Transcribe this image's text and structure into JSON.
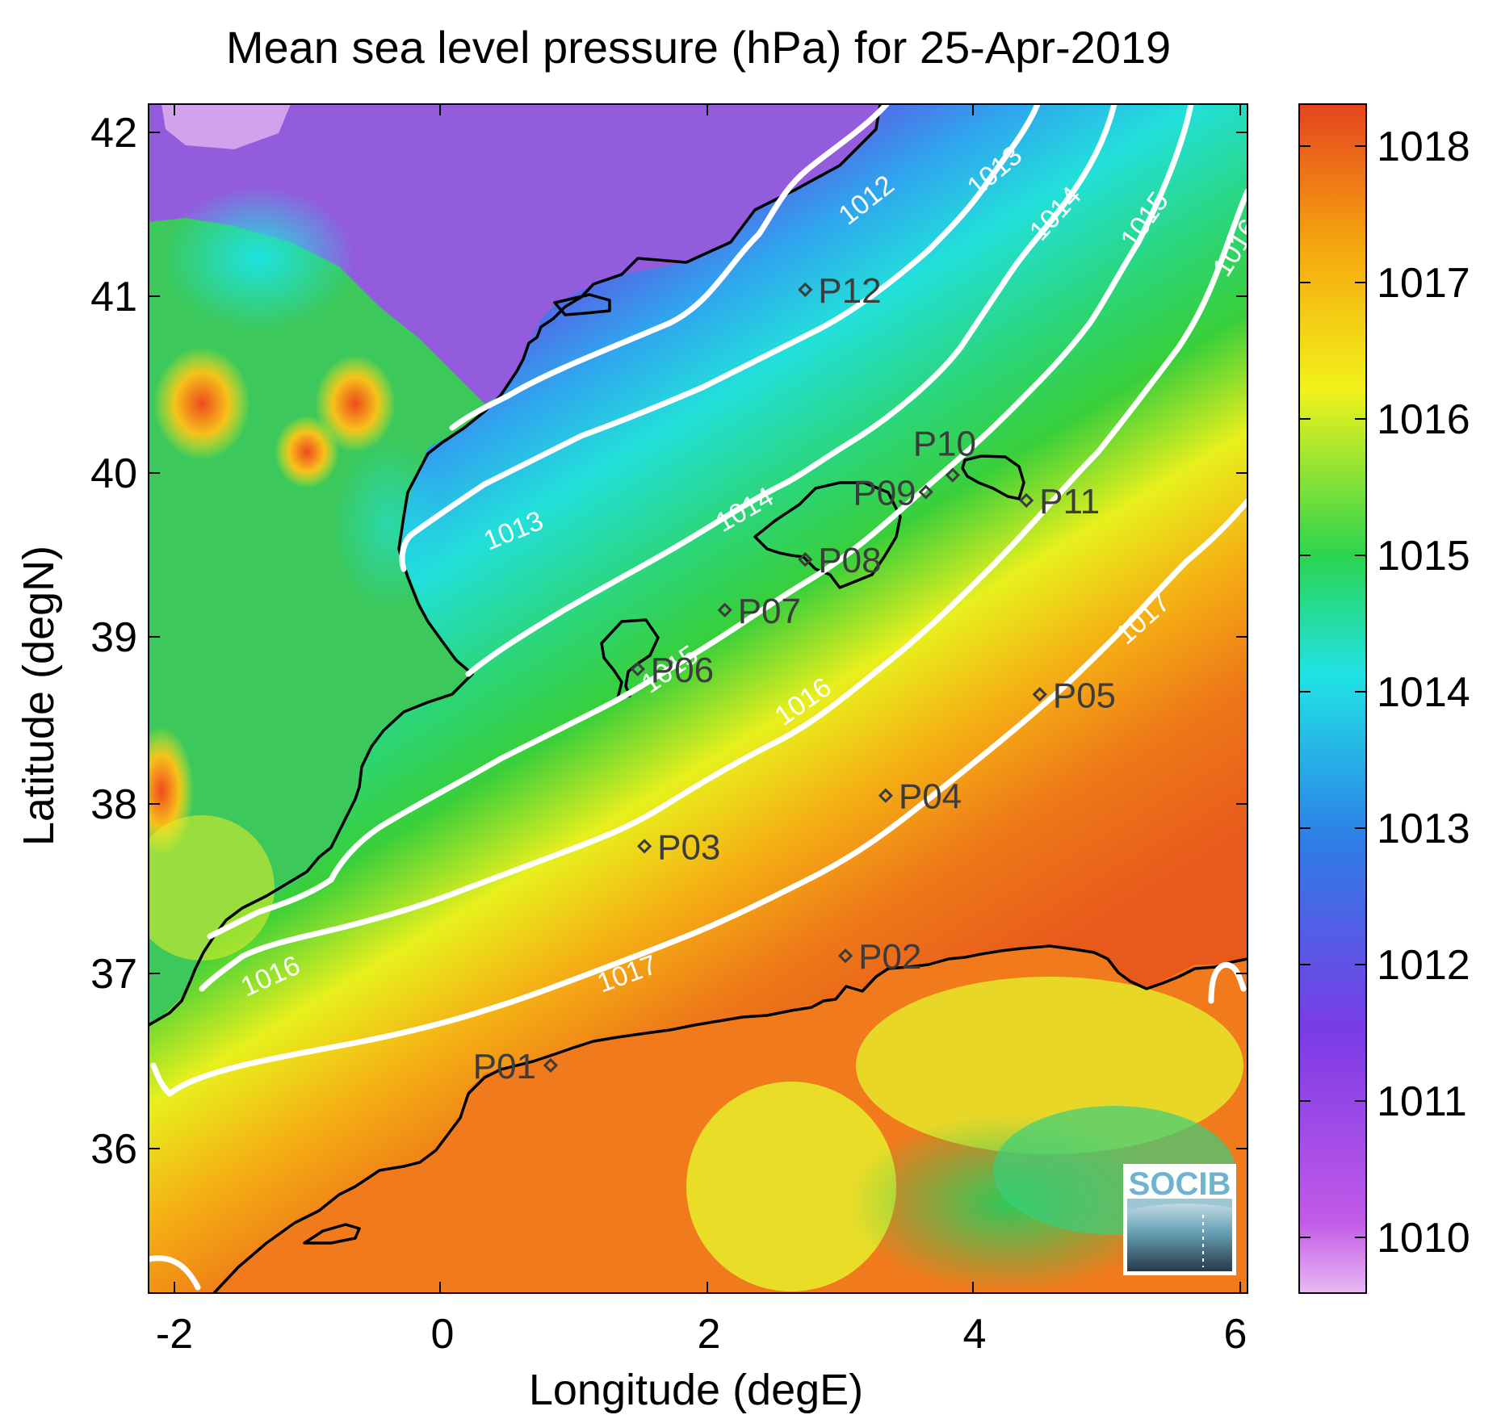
{
  "chart_data": {
    "type": "heatmap",
    "title": "Mean sea level pressure (hPa) for 25-Apr-2019",
    "xlabel": "Longitude (degE)",
    "ylabel": "Latitude (degN)",
    "xlim": [
      -2.2,
      6.0
    ],
    "ylim": [
      35.15,
      42.2
    ],
    "x_ticks": [
      "-2",
      "0",
      "2",
      "4",
      "6"
    ],
    "y_ticks": [
      "36",
      "37",
      "38",
      "39",
      "40",
      "41",
      "42"
    ],
    "colorbar": {
      "range": [
        1009.6,
        1018.3
      ],
      "ticks": [
        "1010",
        "1011",
        "1012",
        "1013",
        "1014",
        "1015",
        "1016",
        "1017",
        "1018"
      ],
      "colors": [
        "#e9b8f2",
        "#c25ae8",
        "#7b3be6",
        "#2e7de6",
        "#20e3e6",
        "#2bd44f",
        "#f2f21a",
        "#f5a70e",
        "#e5441f"
      ]
    },
    "contours": [
      {
        "level": 1012,
        "label": "1012"
      },
      {
        "level": 1013,
        "label": "1013"
      },
      {
        "level": 1014,
        "label": "1014"
      },
      {
        "level": 1015,
        "label": "1015"
      },
      {
        "level": 1016,
        "label": "1016"
      },
      {
        "level": 1017,
        "label": "1017"
      }
    ],
    "points": [
      {
        "name": "P01",
        "lon": 0.8,
        "lat": 36.5
      },
      {
        "name": "P02",
        "lon": 3.0,
        "lat": 37.15
      },
      {
        "name": "P03",
        "lon": 1.5,
        "lat": 37.8
      },
      {
        "name": "P04",
        "lon": 3.3,
        "lat": 38.1
      },
      {
        "name": "P05",
        "lon": 4.45,
        "lat": 38.7
      },
      {
        "name": "P06",
        "lon": 1.45,
        "lat": 38.85
      },
      {
        "name": "P07",
        "lon": 2.1,
        "lat": 39.2
      },
      {
        "name": "P08",
        "lon": 2.7,
        "lat": 39.5
      },
      {
        "name": "P09",
        "lon": 3.6,
        "lat": 39.9
      },
      {
        "name": "P10",
        "lon": 3.8,
        "lat": 40.0
      },
      {
        "name": "P11",
        "lon": 4.35,
        "lat": 39.85
      },
      {
        "name": "P12",
        "lon": 2.7,
        "lat": 41.1
      }
    ],
    "logo": "SOCIB"
  }
}
